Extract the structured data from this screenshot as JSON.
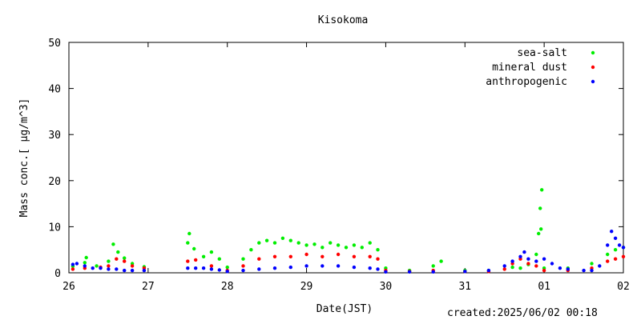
{
  "chart_data": {
    "type": "scatter",
    "title": "Kisokoma",
    "xlabel": "Date(JST)",
    "ylabel": "Mass conc.[ μg/m^3]",
    "x_ticks": [
      "26",
      "27",
      "28",
      "29",
      "30",
      "31",
      "01",
      "02"
    ],
    "x_range": [
      0,
      7
    ],
    "ylim": [
      0,
      50
    ],
    "y_ticks": [
      0,
      10,
      20,
      30,
      40,
      50
    ],
    "grid": false,
    "legend_position": "top-right",
    "series": [
      {
        "name": "sea-salt",
        "color": "#00ee00",
        "points": [
          [
            0.05,
            1.4
          ],
          [
            0.2,
            2.2
          ],
          [
            0.22,
            3.3
          ],
          [
            0.35,
            1.5
          ],
          [
            0.5,
            2.5
          ],
          [
            0.56,
            6.2
          ],
          [
            0.62,
            4.5
          ],
          [
            0.7,
            3.2
          ],
          [
            0.8,
            2.0
          ],
          [
            0.95,
            1.3
          ],
          [
            1.5,
            6.5
          ],
          [
            1.52,
            8.5
          ],
          [
            1.58,
            5.2
          ],
          [
            1.7,
            3.5
          ],
          [
            1.8,
            4.5
          ],
          [
            1.9,
            3.0
          ],
          [
            2.0,
            1.2
          ],
          [
            2.2,
            3.0
          ],
          [
            2.3,
            5.0
          ],
          [
            2.4,
            6.5
          ],
          [
            2.5,
            7.0
          ],
          [
            2.6,
            6.5
          ],
          [
            2.7,
            7.5
          ],
          [
            2.8,
            7.0
          ],
          [
            2.9,
            6.5
          ],
          [
            3.0,
            6.0
          ],
          [
            3.1,
            6.2
          ],
          [
            3.2,
            5.5
          ],
          [
            3.3,
            6.5
          ],
          [
            3.4,
            6.0
          ],
          [
            3.5,
            5.5
          ],
          [
            3.6,
            6.0
          ],
          [
            3.7,
            5.5
          ],
          [
            3.8,
            6.5
          ],
          [
            3.9,
            5.0
          ],
          [
            4.0,
            1.0
          ],
          [
            4.3,
            0.5
          ],
          [
            4.6,
            1.5
          ],
          [
            4.7,
            2.5
          ],
          [
            5.0,
            0.5
          ],
          [
            5.3,
            0.5
          ],
          [
            5.6,
            1.2
          ],
          [
            5.7,
            1.0
          ],
          [
            5.8,
            1.8
          ],
          [
            5.9,
            4.0
          ],
          [
            5.93,
            8.5
          ],
          [
            5.95,
            14.0
          ],
          [
            5.96,
            9.5
          ],
          [
            5.97,
            18.0
          ],
          [
            6.0,
            1.0
          ],
          [
            6.3,
            1.0
          ],
          [
            6.6,
            2.0
          ],
          [
            6.8,
            4.0
          ],
          [
            6.9,
            5.0
          ],
          [
            7.0,
            5.5
          ]
        ]
      },
      {
        "name": "mineral dust",
        "color": "#ff0000",
        "points": [
          [
            0.05,
            0.8
          ],
          [
            0.2,
            1.0
          ],
          [
            0.4,
            1.2
          ],
          [
            0.5,
            1.5
          ],
          [
            0.6,
            3.0
          ],
          [
            0.7,
            2.5
          ],
          [
            0.8,
            1.5
          ],
          [
            0.95,
            1.0
          ],
          [
            1.5,
            2.5
          ],
          [
            1.6,
            2.8
          ],
          [
            1.8,
            1.5
          ],
          [
            2.0,
            0.5
          ],
          [
            2.2,
            1.5
          ],
          [
            2.4,
            3.0
          ],
          [
            2.6,
            3.5
          ],
          [
            2.8,
            3.5
          ],
          [
            3.0,
            4.0
          ],
          [
            3.2,
            3.5
          ],
          [
            3.4,
            4.0
          ],
          [
            3.6,
            3.5
          ],
          [
            3.8,
            3.5
          ],
          [
            3.9,
            3.0
          ],
          [
            4.0,
            0.5
          ],
          [
            4.3,
            0.3
          ],
          [
            4.6,
            0.5
          ],
          [
            5.0,
            0.3
          ],
          [
            5.3,
            0.3
          ],
          [
            5.5,
            0.8
          ],
          [
            5.6,
            2.0
          ],
          [
            5.7,
            3.0
          ],
          [
            5.8,
            2.0
          ],
          [
            5.9,
            1.5
          ],
          [
            6.0,
            0.5
          ],
          [
            6.3,
            0.5
          ],
          [
            6.6,
            1.0
          ],
          [
            6.8,
            2.5
          ],
          [
            6.9,
            3.0
          ],
          [
            7.0,
            3.5
          ]
        ]
      },
      {
        "name": "anthropogenic",
        "color": "#0000ff",
        "points": [
          [
            0.05,
            1.8
          ],
          [
            0.1,
            2.0
          ],
          [
            0.2,
            1.5
          ],
          [
            0.3,
            1.0
          ],
          [
            0.4,
            1.0
          ],
          [
            0.5,
            0.8
          ],
          [
            0.6,
            0.8
          ],
          [
            0.7,
            0.5
          ],
          [
            0.8,
            0.5
          ],
          [
            0.95,
            0.5
          ],
          [
            1.5,
            1.0
          ],
          [
            1.6,
            1.0
          ],
          [
            1.7,
            1.0
          ],
          [
            1.8,
            0.8
          ],
          [
            1.9,
            0.6
          ],
          [
            2.0,
            0.3
          ],
          [
            2.2,
            0.5
          ],
          [
            2.4,
            0.8
          ],
          [
            2.6,
            1.0
          ],
          [
            2.8,
            1.2
          ],
          [
            3.0,
            1.5
          ],
          [
            3.2,
            1.5
          ],
          [
            3.4,
            1.5
          ],
          [
            3.6,
            1.2
          ],
          [
            3.8,
            1.0
          ],
          [
            3.9,
            0.8
          ],
          [
            4.0,
            0.2
          ],
          [
            4.3,
            0.2
          ],
          [
            4.6,
            0.2
          ],
          [
            5.0,
            0.3
          ],
          [
            5.3,
            0.5
          ],
          [
            5.5,
            1.5
          ],
          [
            5.6,
            2.5
          ],
          [
            5.7,
            3.5
          ],
          [
            5.75,
            4.5
          ],
          [
            5.8,
            3.0
          ],
          [
            5.9,
            2.5
          ],
          [
            6.0,
            3.0
          ],
          [
            6.1,
            2.0
          ],
          [
            6.2,
            1.0
          ],
          [
            6.3,
            0.8
          ],
          [
            6.5,
            0.5
          ],
          [
            6.6,
            0.5
          ],
          [
            6.7,
            1.5
          ],
          [
            6.8,
            6.0
          ],
          [
            6.85,
            9.0
          ],
          [
            6.9,
            7.5
          ],
          [
            6.95,
            6.0
          ],
          [
            7.0,
            5.5
          ]
        ]
      }
    ]
  },
  "footer": {
    "created": "created:2025/06/02 00:18"
  }
}
